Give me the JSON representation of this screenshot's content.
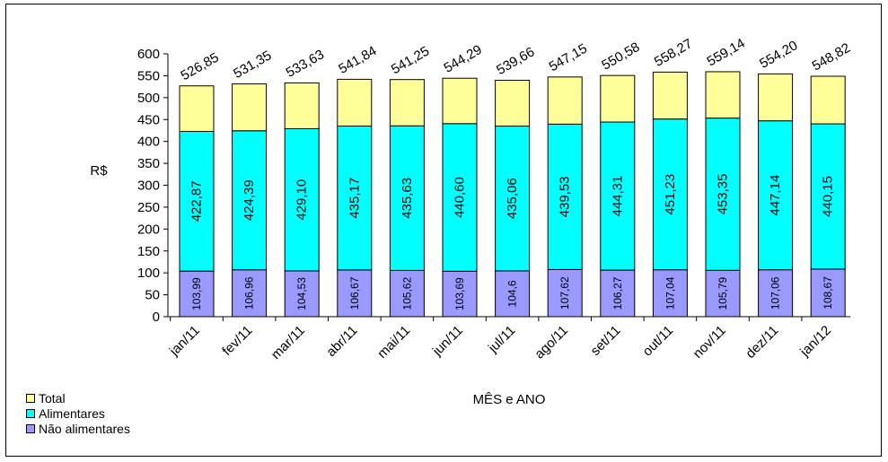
{
  "chart_data": {
    "type": "bar",
    "stacked": true,
    "title": "",
    "xlabel": "MÊS e ANO",
    "ylabel": "R$",
    "ylim": [
      0,
      600
    ],
    "yticks": [
      0,
      50,
      100,
      150,
      200,
      250,
      300,
      350,
      400,
      450,
      500,
      550,
      600
    ],
    "categories": [
      "jan/11",
      "fev/11",
      "mar/11",
      "abr/11",
      "mai/11",
      "jun/11",
      "jul/11",
      "ago/11",
      "set/11",
      "out/11",
      "nov/11",
      "dez/11",
      "jan/12"
    ],
    "series": [
      {
        "name": "Não alimentares",
        "color": "#9999ff",
        "values": [
          103.99,
          106.96,
          104.53,
          106.67,
          105.62,
          103.69,
          104.6,
          107.62,
          106.27,
          107.04,
          105.79,
          107.06,
          108.67
        ],
        "labels": [
          "103,99",
          "106,96",
          "104,53",
          "106,67",
          "105,62",
          "103,69",
          "104,6",
          "107,62",
          "106,27",
          "107,04",
          "105,79",
          "107,06",
          "108,67"
        ]
      },
      {
        "name": "Alimentares",
        "color": "#00ffff",
        "values": [
          422.87,
          424.39,
          429.1,
          435.17,
          435.63,
          440.6,
          435.06,
          439.53,
          444.31,
          451.23,
          453.35,
          447.14,
          440.15
        ],
        "labels": [
          "422,87",
          "424,39",
          "429,10",
          "435,17",
          "435,63",
          "440,60",
          "435,06",
          "439,53",
          "444,31",
          "451,23",
          "453,35",
          "447,14",
          "440,15"
        ]
      },
      {
        "name": "Total",
        "color": "#ffff99",
        "values": [
          526.85,
          531.35,
          533.63,
          541.84,
          541.25,
          544.29,
          539.66,
          547.15,
          550.58,
          558.27,
          559.14,
          554.2,
          548.82
        ],
        "labels": [
          "526,85",
          "531,35",
          "533,63",
          "541,84",
          "541,25",
          "544,29",
          "539,66",
          "547,15",
          "550,58",
          "558,27",
          "559,14",
          "554,20",
          "548,82"
        ]
      }
    ],
    "legend": {
      "position": "bottom-left",
      "entries": [
        "Total",
        "Alimentares",
        "Não alimentares"
      ]
    },
    "grid": false
  }
}
